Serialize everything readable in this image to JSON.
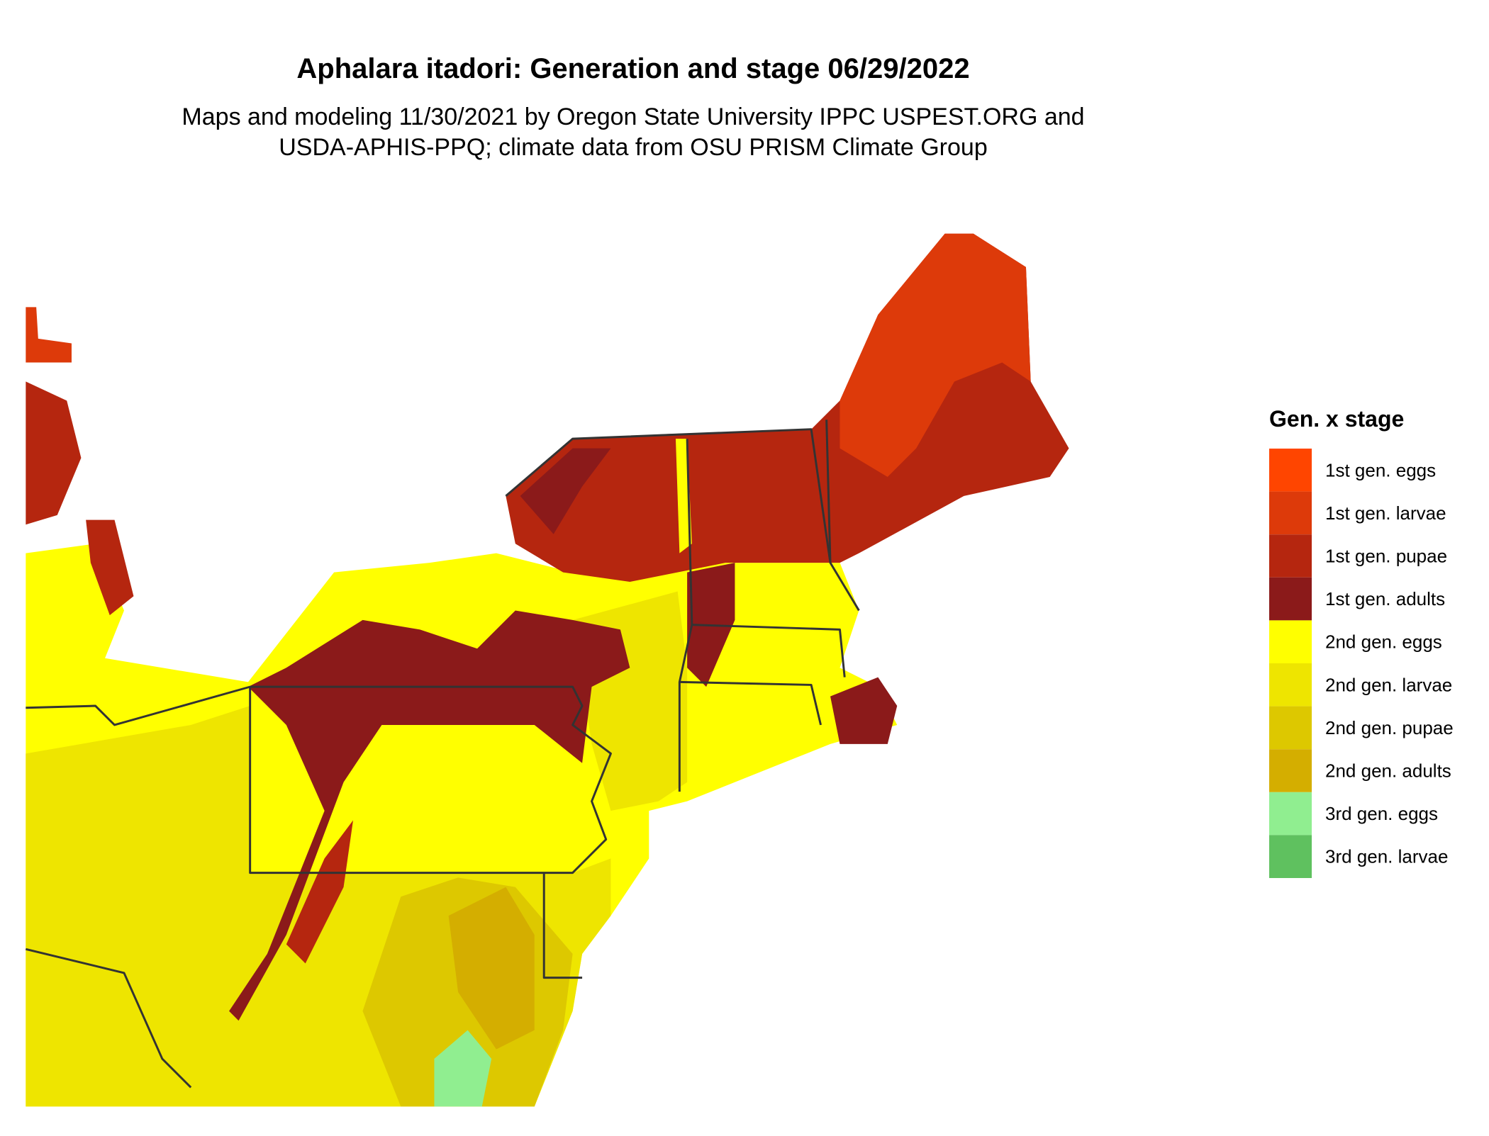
{
  "header": {
    "title": "Aphalara itadori: Generation and stage 06/29/2022",
    "subtitle": [
      "Maps and modeling 11/30/2021 by Oregon State University IPPC USPEST.ORG and",
      "USDA-APHIS-PPQ; climate data from OSU PRISM Climate Group"
    ]
  },
  "legend": {
    "title": "Gen. x stage",
    "items": [
      {
        "label": "1st gen. eggs",
        "color": "#ff4500"
      },
      {
        "label": "1st gen. larvae",
        "color": "#dd3a0a"
      },
      {
        "label": "1st gen. pupae",
        "color": "#b5260f"
      },
      {
        "label": "1st gen. adults",
        "color": "#8b1a1a"
      },
      {
        "label": "2nd gen. eggs",
        "color": "#ffff00"
      },
      {
        "label": "2nd gen. larvae",
        "color": "#eee500"
      },
      {
        "label": "2nd gen. pupae",
        "color": "#ddc800"
      },
      {
        "label": "2nd gen. adults",
        "color": "#d4ae00"
      },
      {
        "label": "3rd gen. eggs",
        "color": "#90ee90"
      },
      {
        "label": "3rd gen. larvae",
        "color": "#5fc15f"
      }
    ]
  }
}
